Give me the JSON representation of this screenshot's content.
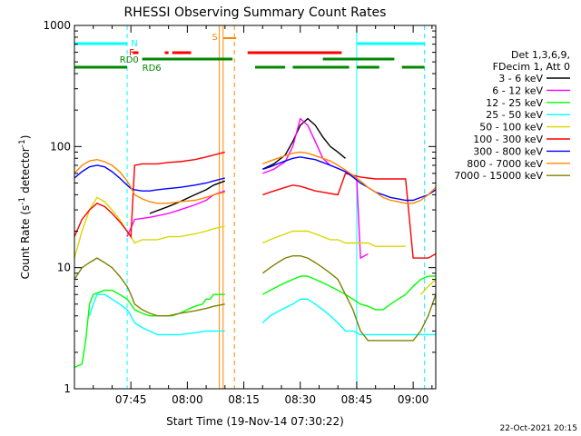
{
  "chart_data": {
    "type": "line",
    "title": "RHESSI Observing Summary Count Rates",
    "xlabel": "Start Time (19-Nov-14 07:30:22)",
    "ylabel_main": "Count Rate (s",
    "ylabel_sup": "-1",
    "ylabel_rest": " detector",
    "ylabel_sup2": "-1",
    "ylabel_end": ")",
    "y_scale": "log",
    "ylim": [
      1,
      1000
    ],
    "xlim_minutes": [
      0,
      96
    ],
    "x_ticks": [
      {
        "label": "07:45",
        "minute": 15
      },
      {
        "label": "08:00",
        "minute": 30
      },
      {
        "label": "08:15",
        "minute": 45
      },
      {
        "label": "08:30",
        "minute": 60
      },
      {
        "label": "08:45",
        "minute": 75
      },
      {
        "label": "09:00",
        "minute": 90
      }
    ],
    "y_ticks": [
      {
        "label": "1",
        "value": 1
      },
      {
        "label": "10",
        "value": 10
      },
      {
        "label": "100",
        "value": 100
      },
      {
        "label": "1000",
        "value": 1000
      }
    ],
    "legend_header": [
      "Det 1,3,6,9,",
      "FDecim 1, Att 0"
    ],
    "series": [
      {
        "name": "3 - 6 keV",
        "color": "#000000",
        "x": [
          0,
          5,
          10,
          14,
          16,
          20,
          25,
          28,
          32,
          35,
          37,
          40,
          42,
          46,
          48,
          50,
          53,
          56,
          58,
          60,
          62,
          64,
          66,
          68,
          70,
          72,
          75,
          77,
          80,
          82,
          86,
          89,
          92,
          95,
          96
        ],
        "y": [
          null,
          null,
          null,
          null,
          null,
          28,
          32,
          35,
          40,
          44,
          48,
          52,
          null,
          null,
          null,
          65,
          72,
          85,
          110,
          150,
          170,
          150,
          120,
          100,
          90,
          80,
          null,
          null,
          null,
          null,
          null,
          null,
          null,
          null,
          null
        ]
      },
      {
        "name": "6 - 12 keV",
        "color": "#ff00ff",
        "x": [
          14,
          16,
          20,
          25,
          28,
          32,
          35,
          37,
          40,
          42,
          46,
          48,
          50,
          53,
          56,
          58,
          60,
          62,
          64,
          66,
          68,
          70,
          72,
          75,
          76,
          78
        ],
        "y": [
          18,
          25,
          26,
          28,
          30,
          33,
          36,
          40,
          43,
          null,
          null,
          null,
          60,
          65,
          75,
          100,
          170,
          150,
          110,
          80,
          70,
          66,
          62,
          55,
          12,
          13
        ]
      },
      {
        "name": "12 - 25 keV",
        "color": "#00ff00",
        "x": [
          0,
          2,
          3,
          4,
          5,
          8,
          10,
          12,
          14,
          15,
          16,
          18,
          20,
          22,
          24,
          26,
          28,
          30,
          32,
          34,
          35,
          36,
          37,
          40,
          42,
          46,
          48,
          50,
          52,
          54,
          56,
          58,
          60,
          62,
          64,
          66,
          68,
          70,
          72,
          74,
          76,
          78,
          80,
          82,
          84,
          86,
          88,
          90,
          92,
          94,
          96
        ],
        "y": [
          1.5,
          1.6,
          2.5,
          5,
          6,
          6.5,
          6.5,
          6,
          5.5,
          5,
          4.5,
          4.2,
          4,
          4,
          4,
          4,
          4.2,
          4.5,
          4.8,
          5,
          5.5,
          5.5,
          6,
          6,
          null,
          null,
          null,
          6,
          6.5,
          7,
          7.5,
          8,
          8.5,
          8.5,
          8,
          7.5,
          7,
          6.5,
          6,
          5.5,
          5,
          4.8,
          4.5,
          4.5,
          5,
          5.5,
          6,
          7,
          8,
          8.5,
          8.5
        ]
      },
      {
        "name": "25 - 50 keV",
        "color": "#00ffff",
        "x": [
          2,
          4,
          5,
          6,
          8,
          10,
          12,
          14,
          15,
          16,
          18,
          20,
          22,
          25,
          28,
          32,
          35,
          37,
          40,
          42,
          46,
          48,
          50,
          52,
          55,
          58,
          60,
          62,
          64,
          66,
          68,
          70,
          72,
          74,
          76,
          78,
          80,
          82,
          84,
          86,
          88,
          90,
          92,
          94,
          96
        ],
        "y": [
          null,
          4,
          5,
          6,
          6,
          5.5,
          5,
          4.5,
          4,
          3.5,
          3.2,
          3,
          2.8,
          2.8,
          2.8,
          2.9,
          3,
          3,
          3,
          null,
          null,
          null,
          3.5,
          4,
          4.5,
          5,
          5.5,
          5.5,
          5,
          4.5,
          4,
          3.5,
          3,
          3,
          2.8,
          2.8,
          2.8,
          2.8,
          2.8,
          2.8,
          2.8,
          2.8,
          2.8,
          2.8,
          2.8
        ]
      },
      {
        "name": "50 - 100 keV",
        "color": "#d8d800",
        "x": [
          0,
          2,
          4,
          6,
          8,
          10,
          12,
          14,
          15,
          16,
          18,
          20,
          22,
          25,
          28,
          32,
          35,
          37,
          40,
          42,
          46,
          48,
          50,
          52,
          54,
          56,
          58,
          60,
          62,
          64,
          66,
          68,
          70,
          72,
          74,
          76,
          78,
          80,
          82,
          84,
          86,
          88,
          90,
          92,
          94,
          96
        ],
        "y": [
          12,
          20,
          30,
          38,
          35,
          30,
          25,
          20,
          18,
          16,
          17,
          17,
          17,
          18,
          18,
          19,
          20,
          21,
          22,
          null,
          null,
          null,
          16,
          17,
          18,
          19,
          20,
          20,
          20,
          19,
          18,
          17,
          17,
          16,
          16,
          16,
          16,
          15,
          15,
          15,
          15,
          15,
          null,
          6,
          7,
          8
        ]
      },
      {
        "name": "100 - 300 keV",
        "color": "#ff0000",
        "x": [
          0,
          2,
          4,
          6,
          8,
          10,
          12,
          14,
          15,
          16,
          18,
          20,
          22,
          25,
          28,
          32,
          35,
          37,
          40,
          42,
          46,
          48,
          50,
          52,
          54,
          56,
          58,
          60,
          62,
          64,
          66,
          68,
          70,
          72,
          74,
          76,
          78,
          80,
          82,
          84,
          86,
          88,
          90,
          92,
          94,
          96
        ],
        "y": [
          18,
          25,
          30,
          34,
          32,
          28,
          24,
          20,
          18,
          70,
          72,
          72,
          72,
          74,
          75,
          78,
          82,
          85,
          90,
          null,
          null,
          null,
          40,
          42,
          44,
          46,
          48,
          47,
          45,
          43,
          42,
          41,
          40,
          60,
          58,
          56,
          55,
          54,
          54,
          54,
          54,
          54,
          12,
          12,
          12,
          13
        ]
      },
      {
        "name": "300 - 800 keV",
        "color": "#0000ff",
        "x": [
          0,
          2,
          4,
          6,
          8,
          10,
          12,
          14,
          15,
          16,
          18,
          20,
          22,
          25,
          28,
          32,
          35,
          37,
          40,
          42,
          46,
          48,
          50,
          52,
          54,
          56,
          58,
          60,
          62,
          64,
          66,
          68,
          70,
          72,
          74,
          76,
          78,
          80,
          82,
          84,
          86,
          88,
          90,
          92,
          94,
          96
        ],
        "y": [
          55,
          62,
          68,
          70,
          68,
          62,
          55,
          48,
          45,
          44,
          43,
          43,
          44,
          45,
          46,
          48,
          50,
          52,
          55,
          null,
          null,
          null,
          65,
          68,
          72,
          76,
          80,
          82,
          80,
          78,
          74,
          70,
          66,
          62,
          56,
          50,
          46,
          42,
          40,
          38,
          37,
          36,
          36,
          38,
          40,
          44
        ]
      },
      {
        "name": "800 - 7000 keV",
        "color": "#ff8800",
        "x": [
          0,
          2,
          4,
          6,
          8,
          10,
          12,
          14,
          15,
          16,
          18,
          20,
          22,
          25,
          28,
          32,
          35,
          37,
          40,
          42,
          46,
          48,
          50,
          52,
          54,
          56,
          58,
          60,
          62,
          64,
          66,
          68,
          70,
          72,
          74,
          76,
          78,
          80,
          82,
          84,
          86,
          88,
          90,
          92,
          94,
          96
        ],
        "y": [
          60,
          70,
          76,
          78,
          75,
          70,
          62,
          52,
          46,
          40,
          37,
          35,
          34,
          34,
          35,
          36,
          38,
          40,
          42,
          null,
          null,
          null,
          72,
          76,
          80,
          84,
          88,
          90,
          88,
          84,
          80,
          76,
          70,
          64,
          58,
          52,
          46,
          42,
          38,
          36,
          35,
          34,
          34,
          36,
          40,
          46
        ]
      },
      {
        "name": "7000 - 15000 keV",
        "color": "#808000",
        "x": [
          0,
          2,
          4,
          6,
          8,
          10,
          12,
          14,
          15,
          16,
          18,
          20,
          22,
          25,
          28,
          32,
          35,
          37,
          40,
          42,
          46,
          48,
          50,
          52,
          54,
          56,
          58,
          60,
          62,
          64,
          66,
          68,
          70,
          72,
          74,
          76,
          78,
          80,
          82,
          84,
          86,
          88,
          90,
          92,
          94,
          96
        ],
        "y": [
          8,
          10,
          11,
          12,
          11,
          10,
          8.5,
          7,
          6,
          5,
          4.5,
          4.2,
          4,
          4,
          4.2,
          4.4,
          4.6,
          4.8,
          5,
          null,
          null,
          null,
          9,
          10,
          11,
          12,
          12.5,
          12.5,
          12,
          11,
          10,
          9,
          8,
          6,
          4.5,
          3,
          2.5,
          2.5,
          2.5,
          2.5,
          2.5,
          2.5,
          2.5,
          3,
          4,
          6
        ]
      }
    ],
    "flag_labels": {
      "S": "S",
      "F": "F",
      "N": "N",
      "RD0": "RD0",
      "RD6": "RD6"
    },
    "flags": {
      "N": {
        "color": "#00ffff",
        "segments": [
          [
            0,
            14
          ],
          [
            75,
            93
          ]
        ]
      },
      "S": {
        "color": "#ff8800",
        "segments": [
          [
            39.5,
            43
          ]
        ]
      },
      "F": {
        "color": "#ff0000",
        "segments": [
          [
            15.5,
            17
          ],
          [
            24,
            25
          ],
          [
            26,
            31
          ],
          [
            46,
            71
          ]
        ]
      },
      "RD0": {
        "color": "#008800",
        "segments": [
          [
            18,
            42
          ],
          [
            66,
            85
          ]
        ]
      },
      "RD6": {
        "color": "#008800",
        "segments": [
          [
            0,
            14
          ],
          [
            48,
            56
          ],
          [
            58,
            73
          ],
          [
            75,
            81
          ],
          [
            87,
            93
          ]
        ]
      }
    },
    "vlines": [
      {
        "minute": 14,
        "color": "#00ffff",
        "dashed": true
      },
      {
        "minute": 75,
        "color": "#00ffff",
        "dashed": false
      },
      {
        "minute": 93,
        "color": "#00ffff",
        "dashed": true
      },
      {
        "minute": 38.5,
        "color": "#ff8800",
        "dashed": false
      },
      {
        "minute": 39.5,
        "color": "#ff8800",
        "dashed": false
      },
      {
        "minute": 42.5,
        "color": "#ff8800",
        "dashed": true
      }
    ]
  },
  "footer": {
    "date_stamp": "22-Oct-2021 20:15"
  }
}
